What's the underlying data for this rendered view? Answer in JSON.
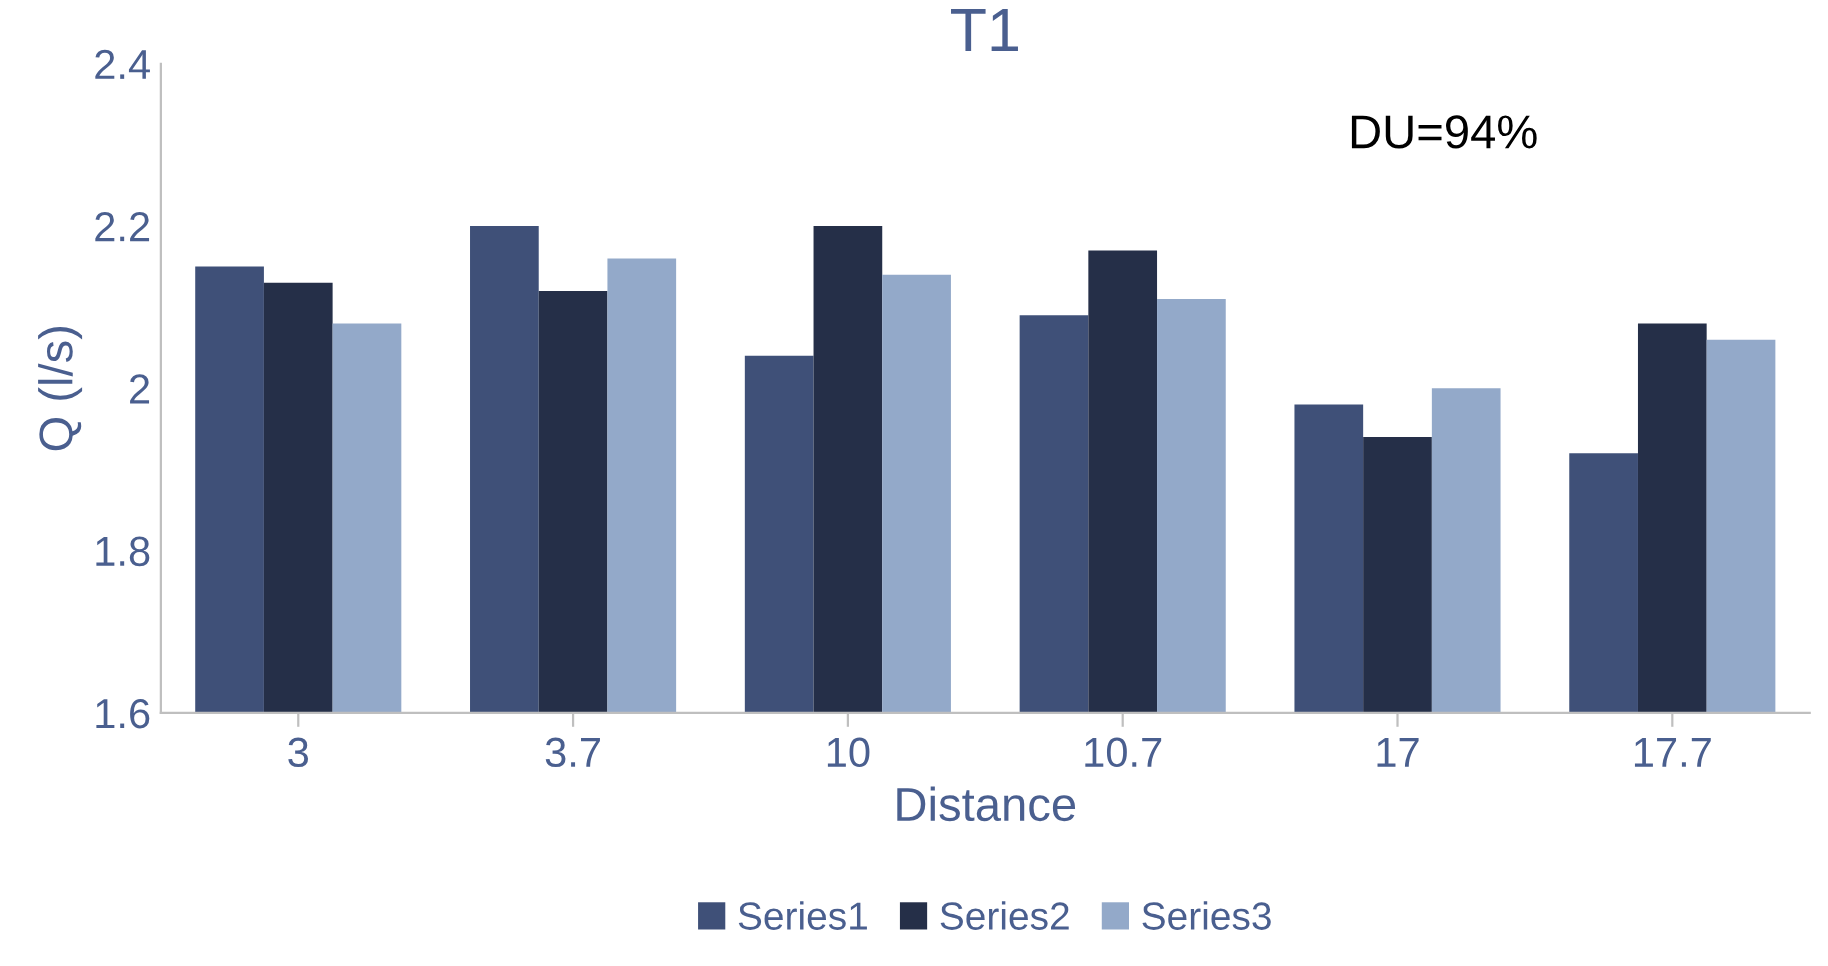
{
  "chart_data": {
    "type": "bar",
    "title": "T1",
    "xlabel": "Distance",
    "ylabel": "Q (l/s)",
    "categories": [
      "3",
      "3.7",
      "10",
      "10.7",
      "17",
      "17.7"
    ],
    "series": [
      {
        "name": "Series1",
        "color": "#3f5078",
        "values": [
          2.15,
          2.2,
          2.04,
          2.09,
          1.98,
          1.92
        ]
      },
      {
        "name": "Series2",
        "color": "#252f48",
        "values": [
          2.13,
          2.12,
          2.2,
          2.17,
          1.94,
          2.08
        ]
      },
      {
        "name": "Series3",
        "color": "#93a9c9",
        "values": [
          2.08,
          2.16,
          2.14,
          2.11,
          2.0,
          2.06
        ]
      }
    ],
    "ylim": [
      1.6,
      2.4
    ],
    "yticks": [
      1.6,
      1.8,
      2,
      2.2,
      2.4
    ],
    "annotations": [
      "DU=94%"
    ],
    "legend": "bottom",
    "grid": false
  }
}
